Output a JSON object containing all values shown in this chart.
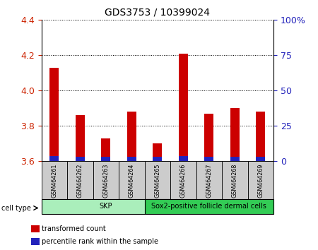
{
  "title": "GDS3753 / 10399024",
  "samples": [
    "GSM464261",
    "GSM464262",
    "GSM464263",
    "GSM464264",
    "GSM464265",
    "GSM464266",
    "GSM464267",
    "GSM464268",
    "GSM464269"
  ],
  "red_values": [
    4.13,
    3.86,
    3.73,
    3.88,
    3.7,
    4.21,
    3.87,
    3.9,
    3.88
  ],
  "blue_values": [
    0.028,
    0.025,
    0.024,
    0.026,
    0.025,
    0.028,
    0.026,
    0.026,
    0.027
  ],
  "y_min": 3.6,
  "y_max": 4.4,
  "y_ticks": [
    3.6,
    3.8,
    4.0,
    4.2,
    4.4
  ],
  "right_y_ticks": [
    0,
    25,
    50,
    75,
    100
  ],
  "right_y_labels": [
    "0",
    "25",
    "50",
    "75",
    "100%"
  ],
  "cell_groups": [
    {
      "label": "SKP",
      "start": 0,
      "end": 4,
      "color": "#aaeebb"
    },
    {
      "label": "Sox2-positive follicle dermal cells",
      "start": 4,
      "end": 8,
      "color": "#33cc55"
    }
  ],
  "cell_type_label": "cell type",
  "bar_width": 0.35,
  "red_color": "#cc0000",
  "blue_color": "#2222bb",
  "legend_red": "transformed count",
  "legend_blue": "percentile rank within the sample",
  "left_tick_color": "#cc2200",
  "right_tick_color": "#2222bb",
  "grid_color": "black",
  "tick_label_bg": "#cccccc"
}
